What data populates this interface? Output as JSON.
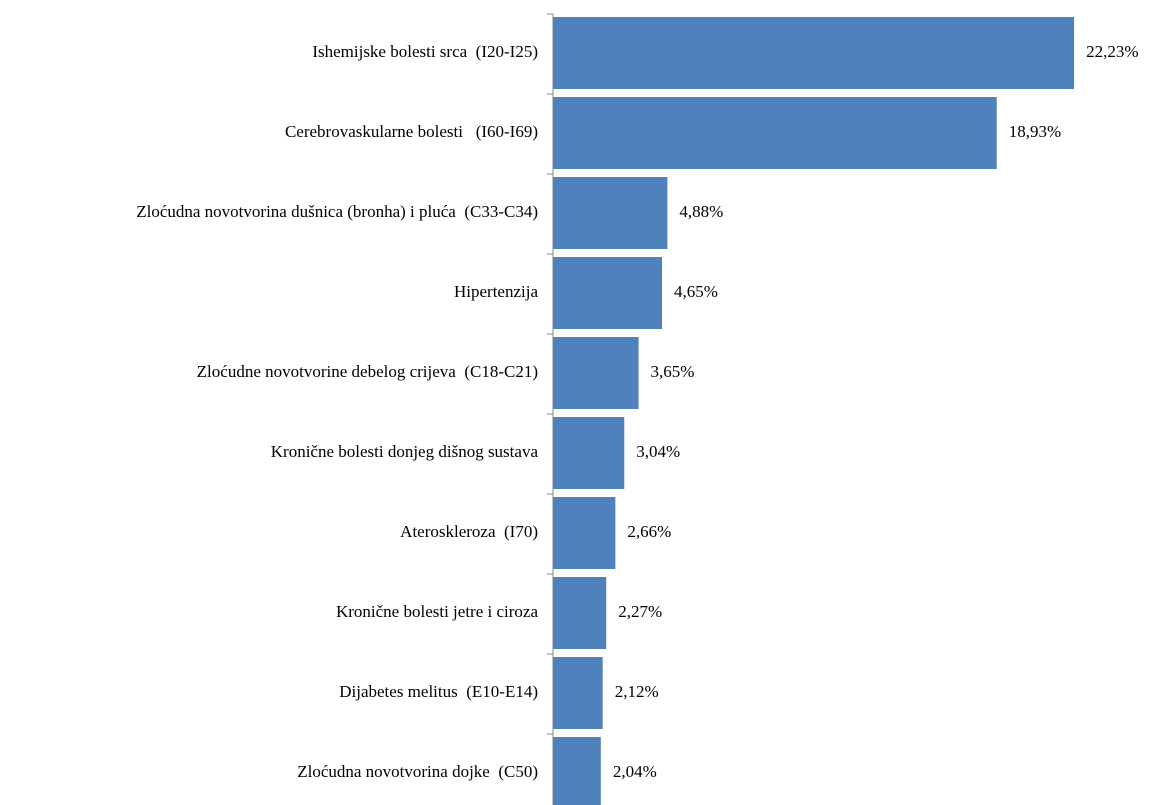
{
  "chart_data": {
    "type": "barh",
    "categories": [
      "Ishemijske bolesti srca  (I20-I25)",
      "Cerebrovaskularne bolesti   (I60-I69)",
      "Zloćudna novotvorina dušnica (bronha) i pluća  (C33-C34)",
      "Hipertenzija",
      "Zloćudne novotvorine debelog crijeva  (C18-C21)",
      "Kronične bolesti donjeg dišnog sustava",
      "Ateroskleroza  (I70)",
      "Kronične bolesti jetre i ciroza",
      "Dijabetes melitus  (E10-E14)",
      "Zloćudna novotvorina dojke  (C50)"
    ],
    "values": [
      22.23,
      18.93,
      4.88,
      4.65,
      3.65,
      3.04,
      2.66,
      2.27,
      2.12,
      2.04
    ],
    "value_labels": [
      "22,23%",
      "18,93%",
      "4,88%",
      "4,65%",
      "3,65%",
      "3,04%",
      "2,66%",
      "2,27%",
      "2,12%",
      "2,04%"
    ],
    "color": "#4f81bd",
    "xlim": [
      0,
      25
    ]
  }
}
